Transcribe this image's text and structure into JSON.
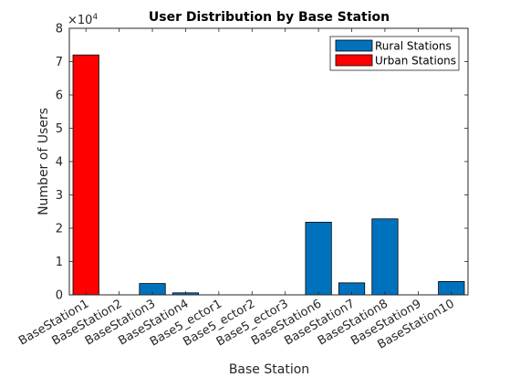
{
  "chart_data": {
    "type": "bar",
    "title": "User Distribution by Base Station",
    "xlabel": "Base Station",
    "ylabel": "Number of Users",
    "y_exponent_label": "×10",
    "y_exponent_power": "4",
    "y_scale": 10000,
    "ylim": [
      0,
      80000
    ],
    "yticks": [
      0,
      10000,
      20000,
      30000,
      40000,
      50000,
      60000,
      70000,
      80000
    ],
    "ytick_labels": [
      "0",
      "1",
      "2",
      "3",
      "4",
      "5",
      "6",
      "7",
      "8"
    ],
    "grid": false,
    "legend_position": "top-right",
    "categories": [
      "BaseStation1",
      "BaseStation2",
      "BaseStation3",
      "BaseStation4",
      "Base5_ector1",
      "Base5_ector2",
      "Base5_ector3",
      "BaseStation6",
      "BaseStation7",
      "BaseStation8",
      "BaseStation9",
      "BaseStation10"
    ],
    "series": [
      {
        "name": "Rural Stations",
        "color": "#0072BD",
        "values": [
          null,
          0,
          3400,
          600,
          0,
          0,
          0,
          21800,
          3600,
          22800,
          0,
          4000
        ]
      },
      {
        "name": "Urban Stations",
        "color": "#FF0000",
        "values": [
          72000,
          null,
          null,
          null,
          null,
          null,
          null,
          null,
          null,
          null,
          null,
          null
        ]
      }
    ]
  }
}
